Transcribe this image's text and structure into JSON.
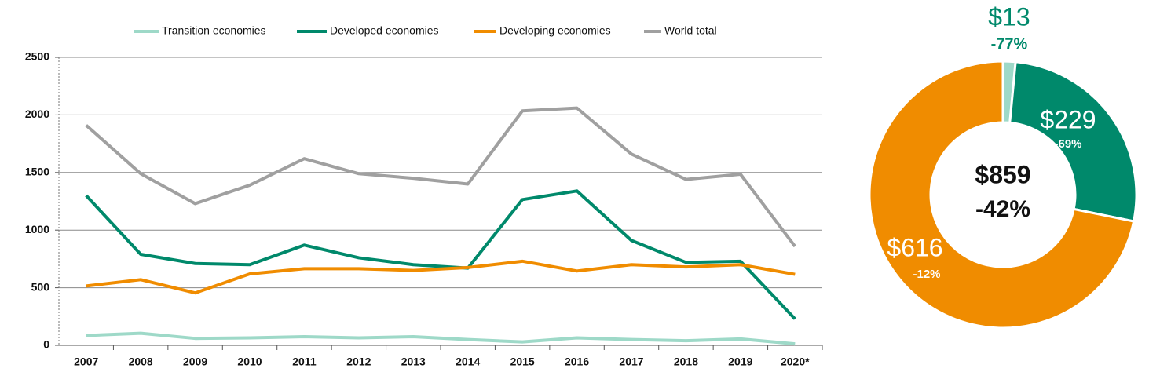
{
  "chart_data": [
    {
      "type": "line",
      "categories": [
        "2007",
        "2008",
        "2009",
        "2010",
        "2011",
        "2012",
        "2013",
        "2014",
        "2015",
        "2016",
        "2017",
        "2018",
        "2019",
        "2020*"
      ],
      "ylim": [
        0,
        2500
      ],
      "yticks": [
        0,
        500,
        1000,
        1500,
        2000,
        2500
      ],
      "grid": true,
      "legend": "top",
      "series": [
        {
          "name": "Transition economies",
          "color": "#9ed9c8",
          "values": [
            85,
            105,
            60,
            65,
            75,
            65,
            75,
            50,
            30,
            65,
            50,
            40,
            55,
            13
          ]
        },
        {
          "name": "Developed economies",
          "color": "#00896b",
          "values": [
            1300,
            790,
            710,
            700,
            870,
            760,
            700,
            670,
            1265,
            1340,
            910,
            720,
            730,
            229
          ]
        },
        {
          "name": "Developing economies",
          "color": "#f08c00",
          "values": [
            515,
            570,
            455,
            620,
            665,
            665,
            650,
            675,
            730,
            645,
            700,
            680,
            700,
            616
          ]
        },
        {
          "name": "World total",
          "color": "#a0a0a0",
          "values": [
            1910,
            1490,
            1230,
            1390,
            1620,
            1490,
            1450,
            1400,
            2035,
            2060,
            1660,
            1440,
            1485,
            859
          ]
        }
      ]
    },
    {
      "type": "donut",
      "values": [
        13,
        229,
        616
      ],
      "value_labels": [
        "$13",
        "$229",
        "$616"
      ],
      "change_labels": [
        "-77%",
        "-69%",
        "-12%"
      ],
      "colors": [
        "#9ed9c8",
        "#00896b",
        "#f08c00"
      ],
      "center_labels": [
        "$859",
        "-42%"
      ]
    }
  ]
}
